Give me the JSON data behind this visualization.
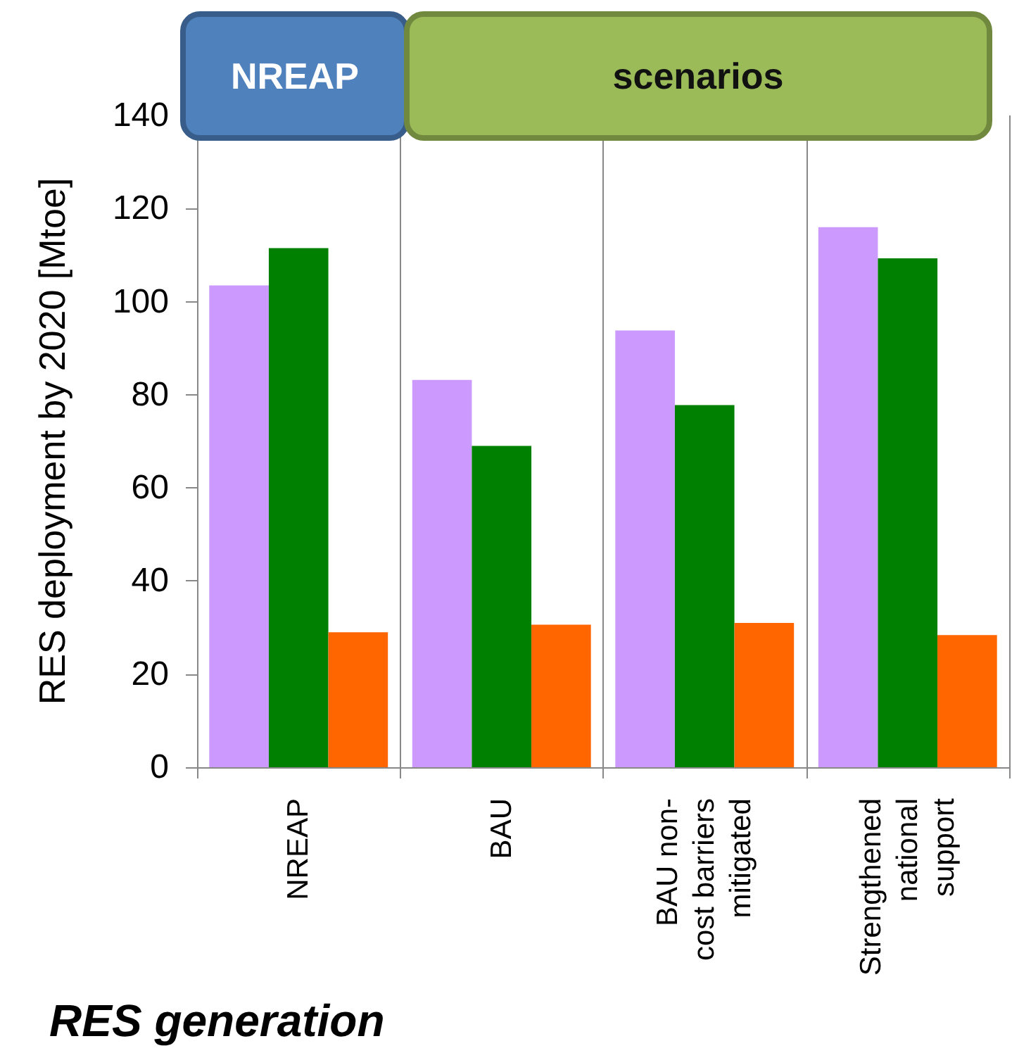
{
  "chart_data": {
    "type": "bar",
    "ylabel": "RES deployment by 2020 [Mtoe]",
    "categories": [
      "NREAP",
      "BAU",
      "BAU non-\ncost barriers\nmitigated",
      "Strengthened\nnational\nsupport"
    ],
    "series": [
      {
        "color": "#cc99ff",
        "values": [
          103.5,
          83.2,
          93.8,
          116
        ]
      },
      {
        "color": "#008000",
        "values": [
          111.5,
          69,
          77.8,
          109.3
        ]
      },
      {
        "color": "#ff6600",
        "values": [
          29,
          30.6,
          31,
          28.4
        ]
      }
    ],
    "ylim": [
      0,
      140
    ],
    "yticks": [
      0,
      20,
      40,
      60,
      80,
      100,
      120,
      140
    ],
    "grid": "x",
    "annotations": [
      "NREAP",
      "scenarios",
      "RES generation"
    ]
  }
}
